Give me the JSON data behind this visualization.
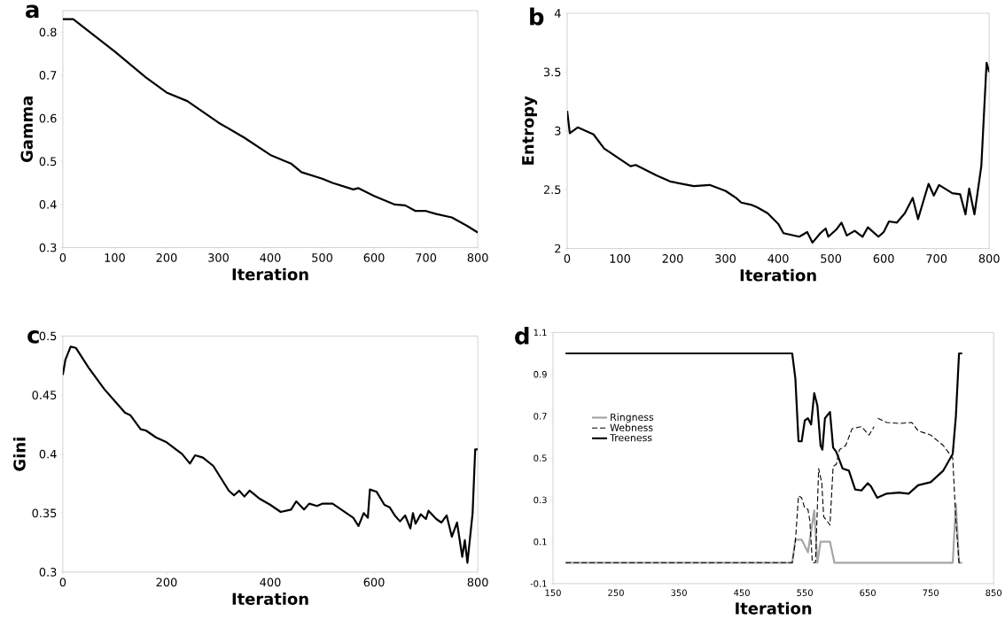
{
  "chart_data": [
    {
      "type": "line",
      "title": "a",
      "xlabel": "Iteration",
      "ylabel": "Gamma",
      "xlim": [
        0,
        800
      ],
      "ylim": [
        0.3,
        0.85
      ],
      "xticks": [
        0,
        100,
        200,
        300,
        400,
        500,
        600,
        700,
        800
      ],
      "yticks": [
        0.3,
        0.4,
        0.5,
        0.6,
        0.7,
        0.8
      ],
      "series": [
        {
          "color": "#000000",
          "line_style": "solid",
          "x": [
            0,
            20,
            100,
            160,
            200,
            240,
            300,
            350,
            400,
            440,
            460,
            500,
            520,
            560,
            570,
            600,
            640,
            660,
            680,
            700,
            720,
            750,
            780,
            800
          ],
          "values": [
            0.83,
            0.83,
            0.755,
            0.695,
            0.66,
            0.64,
            0.59,
            0.555,
            0.515,
            0.495,
            0.475,
            0.46,
            0.45,
            0.435,
            0.438,
            0.42,
            0.4,
            0.398,
            0.385,
            0.385,
            0.378,
            0.37,
            0.35,
            0.335
          ]
        }
      ]
    },
    {
      "type": "line",
      "title": "b",
      "xlabel": "Iteration",
      "ylabel": "Entropy",
      "xlim": [
        0,
        800
      ],
      "ylim": [
        2,
        4
      ],
      "xticks": [
        0,
        100,
        200,
        300,
        400,
        500,
        600,
        700,
        800
      ],
      "yticks": [
        2,
        2.5,
        3,
        3.5,
        4
      ],
      "series": [
        {
          "color": "#000000",
          "line_style": "solid",
          "x": [
            0,
            5,
            20,
            50,
            70,
            100,
            120,
            130,
            170,
            195,
            240,
            270,
            300,
            320,
            330,
            350,
            360,
            380,
            400,
            410,
            440,
            455,
            465,
            480,
            490,
            495,
            510,
            520,
            530,
            545,
            560,
            570,
            590,
            600,
            610,
            625,
            640,
            655,
            665,
            685,
            695,
            705,
            730,
            745,
            755,
            762,
            772,
            785,
            795,
            800
          ],
          "values": [
            3.17,
            2.98,
            3.03,
            2.97,
            2.85,
            2.76,
            2.7,
            2.71,
            2.62,
            2.57,
            2.53,
            2.54,
            2.49,
            2.43,
            2.39,
            2.37,
            2.35,
            2.3,
            2.21,
            2.13,
            2.1,
            2.14,
            2.05,
            2.13,
            2.17,
            2.1,
            2.16,
            2.22,
            2.11,
            2.15,
            2.1,
            2.18,
            2.1,
            2.14,
            2.23,
            2.22,
            2.3,
            2.43,
            2.25,
            2.55,
            2.45,
            2.54,
            2.47,
            2.46,
            2.29,
            2.51,
            2.29,
            2.7,
            3.58,
            3.5
          ]
        }
      ]
    },
    {
      "type": "line",
      "title": "c",
      "xlabel": "Iteration",
      "ylabel": "Gini",
      "xlim": [
        0,
        800
      ],
      "ylim": [
        0.3,
        0.5
      ],
      "xticks": [
        0,
        200,
        400,
        600,
        800
      ],
      "yticks": [
        0.3,
        0.35,
        0.4,
        0.45,
        0.5
      ],
      "series": [
        {
          "color": "#000000",
          "line_style": "solid",
          "x": [
            0,
            5,
            15,
            25,
            50,
            80,
            100,
            120,
            130,
            150,
            160,
            180,
            200,
            230,
            245,
            255,
            270,
            290,
            320,
            330,
            340,
            350,
            360,
            380,
            400,
            420,
            440,
            450,
            465,
            475,
            490,
            500,
            520,
            540,
            560,
            570,
            580,
            588,
            592,
            605,
            620,
            630,
            640,
            650,
            660,
            670,
            675,
            680,
            690,
            700,
            705,
            720,
            730,
            740,
            750,
            760,
            770,
            775,
            780,
            790,
            795,
            800
          ],
          "values": [
            0.467,
            0.48,
            0.491,
            0.49,
            0.473,
            0.455,
            0.445,
            0.435,
            0.433,
            0.421,
            0.42,
            0.414,
            0.41,
            0.4,
            0.392,
            0.399,
            0.397,
            0.39,
            0.369,
            0.365,
            0.369,
            0.364,
            0.369,
            0.362,
            0.357,
            0.351,
            0.353,
            0.36,
            0.353,
            0.358,
            0.356,
            0.358,
            0.358,
            0.352,
            0.346,
            0.339,
            0.35,
            0.346,
            0.37,
            0.368,
            0.357,
            0.355,
            0.348,
            0.343,
            0.348,
            0.337,
            0.35,
            0.341,
            0.349,
            0.345,
            0.352,
            0.345,
            0.342,
            0.348,
            0.33,
            0.342,
            0.313,
            0.327,
            0.308,
            0.35,
            0.404,
            0.404
          ]
        }
      ]
    },
    {
      "type": "line",
      "title": "d",
      "xlabel": "Iteration",
      "xlim": [
        150,
        850
      ],
      "ylim": [
        -0.1,
        1.1
      ],
      "xticks": [
        150,
        250,
        350,
        450,
        550,
        650,
        750,
        850
      ],
      "yticks": [
        -0.1,
        0.1,
        0.3,
        0.5,
        0.7,
        0.9,
        1.1
      ],
      "legend": "left",
      "series": [
        {
          "name": "Ringness",
          "color": "#a6a6a6",
          "line_style": "solid",
          "x": [
            170,
            530,
            535,
            545,
            555,
            565,
            570,
            575,
            590,
            597,
            785,
            790,
            795,
            800
          ],
          "values": [
            0,
            0,
            0.11,
            0.11,
            0.05,
            0.25,
            0,
            0.1,
            0.1,
            0,
            0,
            0.28,
            0,
            0
          ]
        },
        {
          "name": "Webness",
          "color": "#000000",
          "line_style": "dashed",
          "x": [
            170,
            530,
            535,
            540,
            545,
            550,
            555,
            558,
            562,
            567,
            572,
            577,
            580,
            590,
            595,
            600,
            605,
            615,
            625,
            640,
            652,
            660,
            664,
            666,
            680,
            700,
            720,
            730,
            750,
            770,
            785,
            790,
            795,
            800
          ],
          "values": [
            0,
            0,
            0.1,
            0.32,
            0.31,
            0.26,
            0.255,
            0.2,
            0,
            0,
            0.45,
            0.38,
            0.22,
            0.18,
            0.46,
            0.47,
            0.54,
            0.56,
            0.64,
            0.65,
            0.61,
            0.65,
            null,
            0.69,
            0.67,
            0.665,
            0.67,
            0.63,
            0.61,
            0.56,
            0.5,
            0.2,
            0,
            0
          ]
        },
        {
          "name": "Treeness",
          "color": "#000000",
          "line_style": "solid",
          "x": [
            170,
            530,
            535,
            540,
            545,
            550,
            555,
            560,
            565,
            570,
            575,
            578,
            582,
            590,
            595,
            600,
            610,
            620,
            630,
            640,
            650,
            655,
            665,
            680,
            700,
            715,
            730,
            750,
            770,
            785,
            790,
            795,
            800
          ],
          "values": [
            1,
            1,
            0.88,
            0.58,
            0.58,
            0.68,
            0.69,
            0.66,
            0.81,
            0.75,
            0.56,
            0.54,
            0.69,
            0.72,
            0.55,
            0.53,
            0.45,
            0.44,
            0.35,
            0.345,
            0.38,
            0.365,
            0.31,
            0.33,
            0.335,
            0.33,
            0.37,
            0.385,
            0.44,
            0.52,
            0.7,
            1.0,
            1.0
          ]
        }
      ]
    }
  ]
}
